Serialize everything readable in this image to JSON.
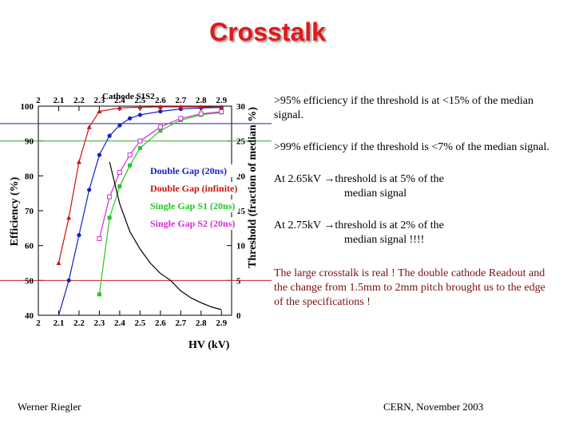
{
  "slide": {
    "title": "Crosstalk",
    "footer_left": "Werner Riegler",
    "footer_right": "CERN, November 2003"
  },
  "bullets": {
    "b1": ">95% efficiency if the threshold is at <15% of the median signal.",
    "b2": ">99% efficiency if the threshold is <7% of the median signal.",
    "b3_main": "At 2.65kV ",
    "b3_arrow": "→",
    "b3_rest": "threshold is at 5% of the",
    "b3_cont": "median signal",
    "b4_main": "At 2.75kV ",
    "b4_arrow": "→",
    "b4_rest": "threshold is at 2% of the",
    "b4_cont": "median signal !!!!",
    "b5": "The large crosstalk is real ! The double cathode Readout and the change from 1.5mm to 2mm pitch brought us to the edge of the specifications !"
  },
  "chart_data": {
    "type": "line",
    "top_axis_title": "Cathode S1S2",
    "xlabel": "HV (kV)",
    "ylabel_left": "Efficiency (%)",
    "ylabel_right": "Threshold (fraction of median %)",
    "xlim": [
      2.0,
      2.95
    ],
    "ylim_left": [
      40,
      100
    ],
    "ylim_right": [
      0,
      30
    ],
    "x_ticks": [
      "2",
      "2.1",
      "2.2",
      "2.3",
      "2.4",
      "2.5",
      "2.6",
      "2.7",
      "2.8",
      "2.9"
    ],
    "y_left_ticks": [
      "40",
      "50",
      "60",
      "70",
      "80",
      "90",
      "100"
    ],
    "y_right_ticks": [
      "0",
      "5",
      "10",
      "15",
      "20",
      "25",
      "30"
    ],
    "reference_lines": [
      {
        "axis": "left",
        "y": 95,
        "color": "#1a2a9a"
      },
      {
        "axis": "left",
        "y": 90,
        "color": "#3aa83a"
      },
      {
        "axis": "left",
        "y": 50,
        "color": "#cc2222"
      }
    ],
    "series": [
      {
        "name": "Double Gap (20ns)",
        "color": "#1420c8",
        "marker": "circle",
        "x": [
          2.1,
          2.15,
          2.2,
          2.25,
          2.3,
          2.35,
          2.4,
          2.45,
          2.5,
          2.6,
          2.7,
          2.8,
          2.9
        ],
        "y": [
          38,
          50,
          63,
          76,
          86,
          91.5,
          94.5,
          96.5,
          97.5,
          98.5,
          99.2,
          99.5,
          99.6
        ]
      },
      {
        "name": "Double Gap (infinite)",
        "color": "#d01010",
        "marker": "triangle",
        "x": [
          2.1,
          2.15,
          2.2,
          2.25,
          2.3,
          2.4,
          2.5,
          2.6,
          2.7,
          2.8,
          2.9
        ],
        "y": [
          55,
          68,
          84,
          94,
          98.5,
          99.5,
          99.7,
          99.8,
          99.8,
          99.8,
          99.7
        ]
      },
      {
        "name": "Single Gap S1 (20ns)",
        "color": "#22c822",
        "marker": "square",
        "x": [
          2.3,
          2.35,
          2.4,
          2.45,
          2.5,
          2.6,
          2.7,
          2.8,
          2.9
        ],
        "y": [
          46,
          68,
          77,
          83,
          88,
          93,
          96,
          97.5,
          98.2
        ]
      },
      {
        "name": "Single Gap S2 (20ns)",
        "color": "#d030d0",
        "marker": "square-open",
        "x": [
          2.3,
          2.35,
          2.4,
          2.45,
          2.5,
          2.6,
          2.7,
          2.8,
          2.9
        ],
        "y": [
          62,
          74,
          81,
          86,
          90,
          94,
          96.5,
          97.8,
          98.4
        ]
      },
      {
        "name": "Threshold",
        "color": "#000000",
        "axis": "right",
        "marker": "none",
        "x": [
          2.35,
          2.4,
          2.45,
          2.5,
          2.55,
          2.6,
          2.65,
          2.7,
          2.75,
          2.8,
          2.85,
          2.9
        ],
        "y": [
          22,
          16,
          12,
          9.5,
          7.5,
          6,
          5,
          3.5,
          2.5,
          1.8,
          1.2,
          0.8
        ]
      }
    ]
  }
}
